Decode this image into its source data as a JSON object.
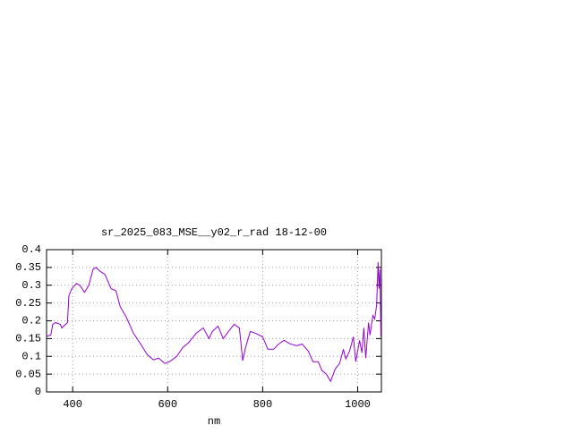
{
  "chart_data": {
    "type": "line",
    "title": "sr_2025_083_MSE__y02_r_rad 18-12-00",
    "x_label": "nm",
    "x": [
      345,
      354,
      358,
      364,
      374,
      377,
      381,
      389,
      392,
      398,
      408,
      415,
      425,
      434,
      443,
      449,
      457,
      468,
      481,
      491,
      500,
      513,
      528,
      543,
      557,
      570,
      581,
      594,
      604,
      619,
      632,
      645,
      660,
      675,
      687,
      694,
      706,
      717,
      728,
      740,
      751,
      758,
      764,
      774,
      785,
      800,
      811,
      823,
      834,
      845,
      858,
      872,
      883,
      896,
      906,
      917,
      925,
      934,
      943,
      953,
      962,
      970,
      975,
      983,
      991,
      996,
      1004,
      1009,
      1013,
      1017,
      1023,
      1026,
      1032,
      1036,
      1040,
      1043,
      1045,
      1047,
      1049
    ],
    "values": [
      0.156,
      0.16,
      0.19,
      0.195,
      0.19,
      0.18,
      0.185,
      0.195,
      0.27,
      0.29,
      0.305,
      0.3,
      0.28,
      0.3,
      0.345,
      0.35,
      0.34,
      0.33,
      0.29,
      0.285,
      0.24,
      0.21,
      0.165,
      0.135,
      0.105,
      0.09,
      0.095,
      0.08,
      0.085,
      0.1,
      0.125,
      0.14,
      0.165,
      0.18,
      0.15,
      0.17,
      0.185,
      0.15,
      0.17,
      0.19,
      0.18,
      0.088,
      0.125,
      0.17,
      0.165,
      0.155,
      0.12,
      0.12,
      0.135,
      0.145,
      0.135,
      0.13,
      0.135,
      0.115,
      0.085,
      0.085,
      0.06,
      0.05,
      0.03,
      0.065,
      0.08,
      0.12,
      0.093,
      0.115,
      0.155,
      0.085,
      0.145,
      0.11,
      0.18,
      0.095,
      0.195,
      0.16,
      0.215,
      0.205,
      0.245,
      0.365,
      0.29,
      0.345,
      0.155
    ],
    "color": "#9400d3",
    "xlim": [
      345,
      1050
    ],
    "ylim": [
      0,
      0.4
    ],
    "xticks": [
      400,
      600,
      800,
      1000
    ],
    "yticks": [
      0,
      0.05,
      0.1,
      0.15,
      0.2,
      0.25,
      0.3,
      0.35,
      0.4
    ],
    "grid": true
  }
}
